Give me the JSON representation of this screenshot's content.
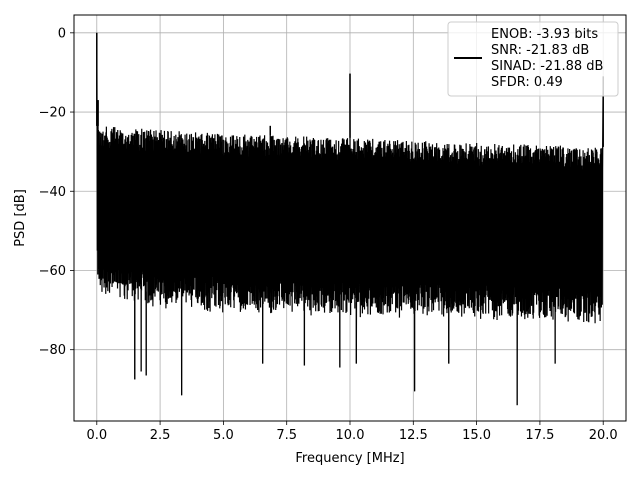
{
  "chart_data": {
    "type": "line",
    "xlabel": "Frequency [MHz]",
    "ylabel": "PSD [dB]",
    "xlim": [
      -0.9,
      20.9
    ],
    "ylim": [
      -98,
      4.5
    ],
    "xticks": [
      0.0,
      2.5,
      5.0,
      7.5,
      10.0,
      12.5,
      15.0,
      17.5,
      20.0
    ],
    "xtick_labels": [
      "0.0",
      "2.5",
      "5.0",
      "7.5",
      "10.0",
      "12.5",
      "15.0",
      "17.5",
      "20.0"
    ],
    "yticks": [
      0,
      -20,
      -40,
      -60,
      -80
    ],
    "ytick_labels": [
      "0",
      "−20",
      "−40",
      "−60",
      "−80"
    ],
    "grid": true,
    "legend_position": "top-right",
    "series": [
      {
        "legend_lines": [
          "ENOB: -3.93 bits",
          "SNR: -21.83 dB",
          "SINAD: -21.88 dB",
          "SFDR: 0.49"
        ],
        "color": "#000000",
        "noise_floor_upper": [
          [
            0.05,
            -23.5
          ],
          [
            2.5,
            -24.5
          ],
          [
            5.0,
            -25.5
          ],
          [
            7.5,
            -26.0
          ],
          [
            10.0,
            -26.5
          ],
          [
            12.5,
            -27.2
          ],
          [
            15.0,
            -27.8
          ],
          [
            17.5,
            -28.3
          ],
          [
            20.0,
            -28.8
          ]
        ],
        "noise_floor_lower": [
          [
            0.05,
            -63
          ],
          [
            2.5,
            -66
          ],
          [
            5.0,
            -67
          ],
          [
            7.5,
            -67.5
          ],
          [
            10.0,
            -68
          ],
          [
            12.5,
            -68.5
          ],
          [
            15.0,
            -69
          ],
          [
            17.5,
            -69.5
          ],
          [
            20.0,
            -70
          ]
        ],
        "spikes": [
          {
            "x": 0.0,
            "y": 0.0
          },
          {
            "x": 0.05,
            "y": -17.0
          },
          {
            "x": 10.0,
            "y": -10.3
          },
          {
            "x": 20.0,
            "y": -11.0
          },
          {
            "x": 6.85,
            "y": -23.5
          }
        ],
        "dips": [
          {
            "x": 1.5,
            "y": -87.5
          },
          {
            "x": 1.75,
            "y": -85.5
          },
          {
            "x": 1.95,
            "y": -86.5
          },
          {
            "x": 3.35,
            "y": -91.5
          },
          {
            "x": 6.55,
            "y": -83.5
          },
          {
            "x": 8.2,
            "y": -84.0
          },
          {
            "x": 9.6,
            "y": -84.5
          },
          {
            "x": 10.25,
            "y": -83.5
          },
          {
            "x": 12.55,
            "y": -90.5
          },
          {
            "x": 13.9,
            "y": -83.5
          },
          {
            "x": 16.6,
            "y": -94.0
          },
          {
            "x": 18.1,
            "y": -83.5
          }
        ]
      }
    ]
  }
}
